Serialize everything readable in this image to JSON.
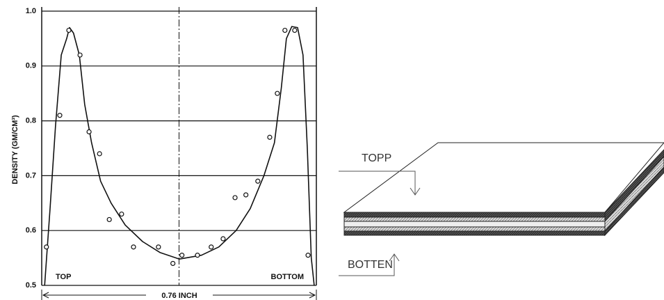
{
  "chart_data": {
    "type": "scatter",
    "ylabel": "DENSITY (GM/CM³)",
    "annotations": [
      "TOP",
      "BOTTOM",
      "0.76 INCH"
    ],
    "xlim": [
      0,
      0.76
    ],
    "ylim": [
      0.5,
      1.0
    ],
    "yticks": [
      0.5,
      0.6,
      0.7,
      0.8,
      0.9,
      {
        "value": 1,
        "label": "1.0"
      }
    ],
    "grid": true,
    "color": "#111111",
    "x": [
      0.013,
      0.05,
      0.075,
      0.106,
      0.131,
      0.16,
      0.187,
      0.221,
      0.254,
      0.323,
      0.363,
      0.388,
      0.431,
      0.469,
      0.502,
      0.535,
      0.565,
      0.598,
      0.631,
      0.652,
      0.673,
      0.7,
      0.737
    ],
    "values": [
      0.57,
      0.81,
      0.965,
      0.92,
      0.78,
      0.74,
      0.62,
      0.63,
      0.57,
      0.57,
      0.54,
      0.555,
      0.555,
      0.57,
      0.585,
      0.66,
      0.665,
      0.69,
      0.77,
      0.85,
      0.965,
      0.965,
      0.555
    ],
    "curve": {
      "x": [
        0.008,
        0.023,
        0.038,
        0.054,
        0.069,
        0.077,
        0.088,
        0.104,
        0.119,
        0.138,
        0.163,
        0.192,
        0.231,
        0.279,
        0.327,
        0.381,
        0.442,
        0.49,
        0.538,
        0.577,
        0.615,
        0.644,
        0.663,
        0.677,
        0.692,
        0.708,
        0.723,
        0.735,
        0.746,
        0.754
      ],
      "values": [
        0.5,
        0.64,
        0.79,
        0.92,
        0.95,
        0.97,
        0.96,
        0.92,
        0.83,
        0.76,
        0.69,
        0.65,
        0.61,
        0.58,
        0.56,
        0.548,
        0.555,
        0.57,
        0.6,
        0.64,
        0.7,
        0.76,
        0.86,
        0.95,
        0.972,
        0.97,
        0.92,
        0.75,
        0.55,
        0.5
      ]
    }
  },
  "diagram": {
    "labels": [
      "TOPP",
      "BOTTEN"
    ]
  }
}
